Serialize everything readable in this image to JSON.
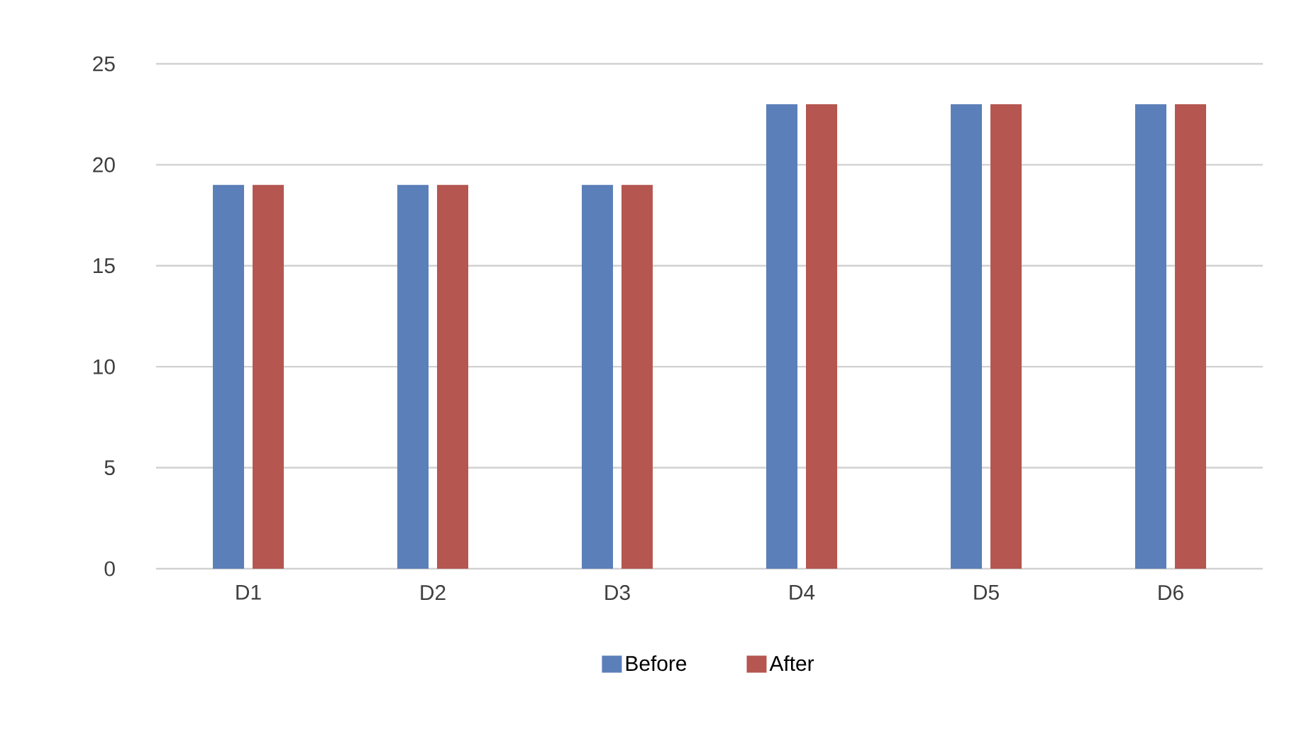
{
  "chart_data": {
    "type": "bar",
    "categories": [
      "D1",
      "D2",
      "D3",
      "D4",
      "D5",
      "D6"
    ],
    "series": [
      {
        "name": "Before",
        "color": "#5b7fb8",
        "values": [
          19,
          19,
          19,
          23,
          23,
          23
        ]
      },
      {
        "name": "After",
        "color": "#b55650",
        "values": [
          19,
          19,
          19,
          23,
          23,
          23
        ]
      }
    ],
    "ylim": [
      0,
      25
    ],
    "yticks": [
      0,
      5,
      10,
      15,
      20,
      25
    ],
    "grid": "y",
    "legend": "bottom"
  }
}
